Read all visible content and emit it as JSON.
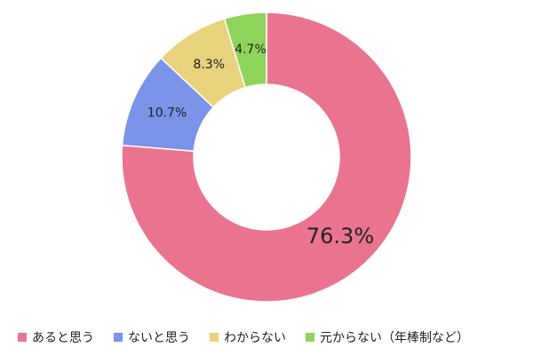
{
  "chart_data": {
    "type": "donut",
    "categories": [
      "あると思う",
      "ないと思う",
      "わからない",
      "元からない（年棒制など）"
    ],
    "values": [
      76.3,
      10.7,
      8.3,
      4.7
    ],
    "value_labels": [
      "76.3%",
      "10.7%",
      "8.3%",
      "4.7%"
    ],
    "colors": [
      "#ea7490",
      "#7b93e8",
      "#e8d27c",
      "#8fd45a"
    ],
    "legend": "bottom"
  }
}
